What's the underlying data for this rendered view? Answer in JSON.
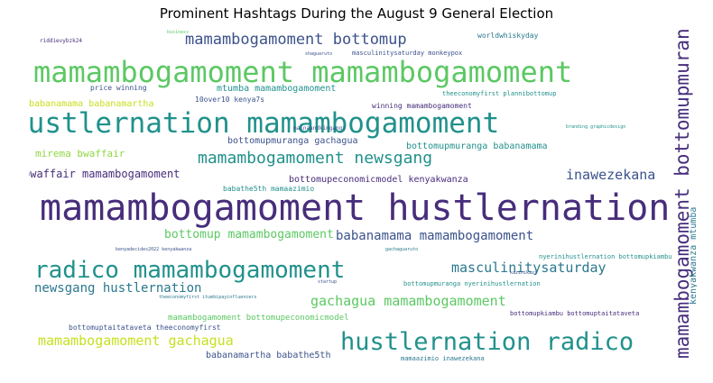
{
  "title": "Prominent Hashtags During the August 9 General Election",
  "palette": {
    "green": "#5cc863",
    "teal": "#21918c",
    "blue": "#3b528b",
    "purple": "#472d7b",
    "yellow": "#c8e020",
    "lime": "#90d743",
    "cyan": "#2a788e"
  },
  "words": {
    "w1": "mamambogamoment hustlernation",
    "w2": "mamambogamoment mamambogamoment",
    "w3": "hustlernation mamambogamoment",
    "w4": "mamambogamoment bottomupmuranga",
    "w5": "hustlernation radico",
    "w6": "radico mamambogamoment",
    "w7": "mamambogamoment newsgang",
    "w8": "mamambogamoment bottomup",
    "w9": "babanamama mamambogamoment",
    "w10": "bottomup mamambogamoment",
    "w11": "gachagua mamambogamoment",
    "w12": "masculinitysaturday",
    "w13": "mamambogamoment gachagua",
    "w14": "newsgang hustlernation",
    "w15": "inawezekana",
    "w16": "bwaffair mamambogamoment",
    "w17": "kenyakwanza mtumba",
    "w18": "mirema bwaffair",
    "w19": "babanamama babanamartha",
    "w20": "mtumba mamambogamoment",
    "w21": "bottomupmuranga babanamama",
    "w22": "bottomupmuranga gachagua",
    "w23": "bottomupeconomicmodel kenyakwanza",
    "w24": "babanamartha babathe5th",
    "w25": "mamambogamoment bottomupeconomicmodel",
    "w26": "bottomuptaitataveta theeconomyfirst",
    "w27": "price winning",
    "w28": "10over10 kenya7s",
    "w29": "babathe5th mamaazimio",
    "w30": "winning mamambogamoment",
    "w31": "worldwhiskyday",
    "w32": "masculinitysaturday monkeypox",
    "w33": "theeconomyfirst plannibottomup",
    "w34": "nyerinihustlernation bottomupkiambu",
    "w35": "bottomupmuranga nyerinihustlernation",
    "w36": "bottomupkiambu bottomuptaitataveta",
    "w37": "mamaazimio inawezekana",
    "w38": "kenyadecides2022 kenyakwanza",
    "w39": "theeconomyfirst itumbipayinfluencers",
    "w40": "gachaguaruto",
    "w41": "riddievybzk24",
    "w42": "mainaandkingangi",
    "w43": "shaguaruto",
    "w44": "kazinikazi",
    "w45": "startup",
    "w46": "business",
    "w47": "branding graphicdesign"
  }
}
